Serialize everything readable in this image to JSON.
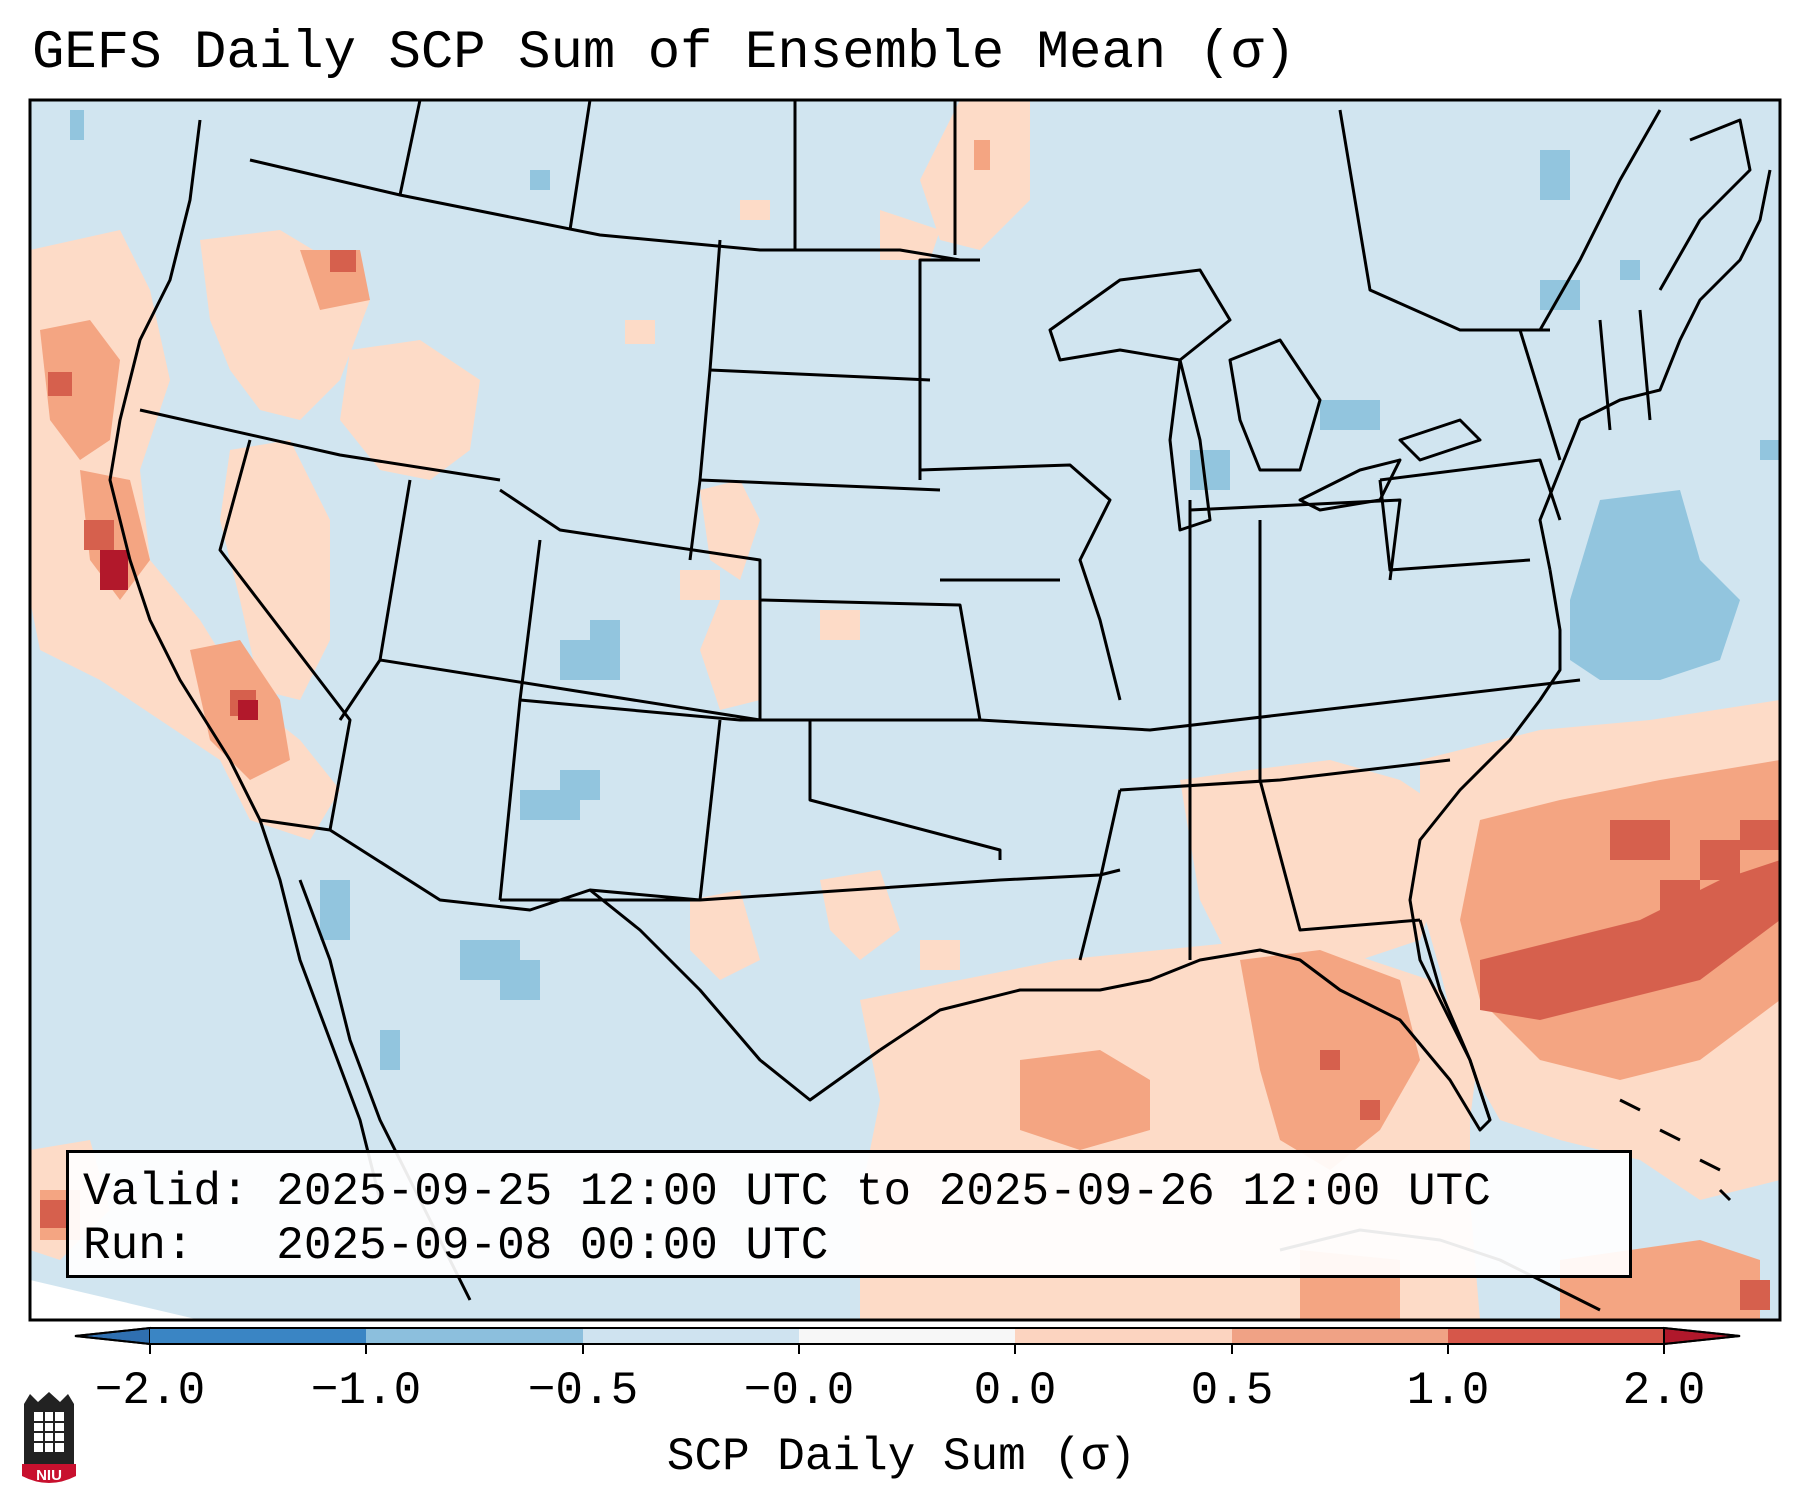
{
  "title": "GEFS Daily SCP Sum of Ensemble Mean (σ)",
  "info": {
    "valid_line": "Valid: 2025-09-25 12:00 UTC to 2025-09-26 12:00 UTC",
    "run_line": "Run:   2025-09-08 00:00 UTC"
  },
  "colorbar": {
    "label": "SCP Daily Sum (σ)",
    "ticks": [
      "−2.0",
      "−1.0",
      "−0.5",
      "−0.0",
      "0.0",
      "0.5",
      "1.0",
      "2.0"
    ],
    "colors": [
      "#3a85c4",
      "#8cbfdd",
      "#cfe3f0",
      "#f7f7f7",
      "#fcd4c0",
      "#f0a285",
      "#d6574a"
    ],
    "under_color": "#2f6fb0",
    "over_color": "#b0182b"
  },
  "map_colors": {
    "background": "#d1e5f0",
    "light_red": "#fddbc7",
    "mid_red": "#f4a582",
    "dark_red": "#d6604d",
    "deep_red": "#b2182b",
    "mid_blue": "#92c5de",
    "light_blue_dot": "#92c5de"
  },
  "logo": {
    "text": "NIU"
  }
}
